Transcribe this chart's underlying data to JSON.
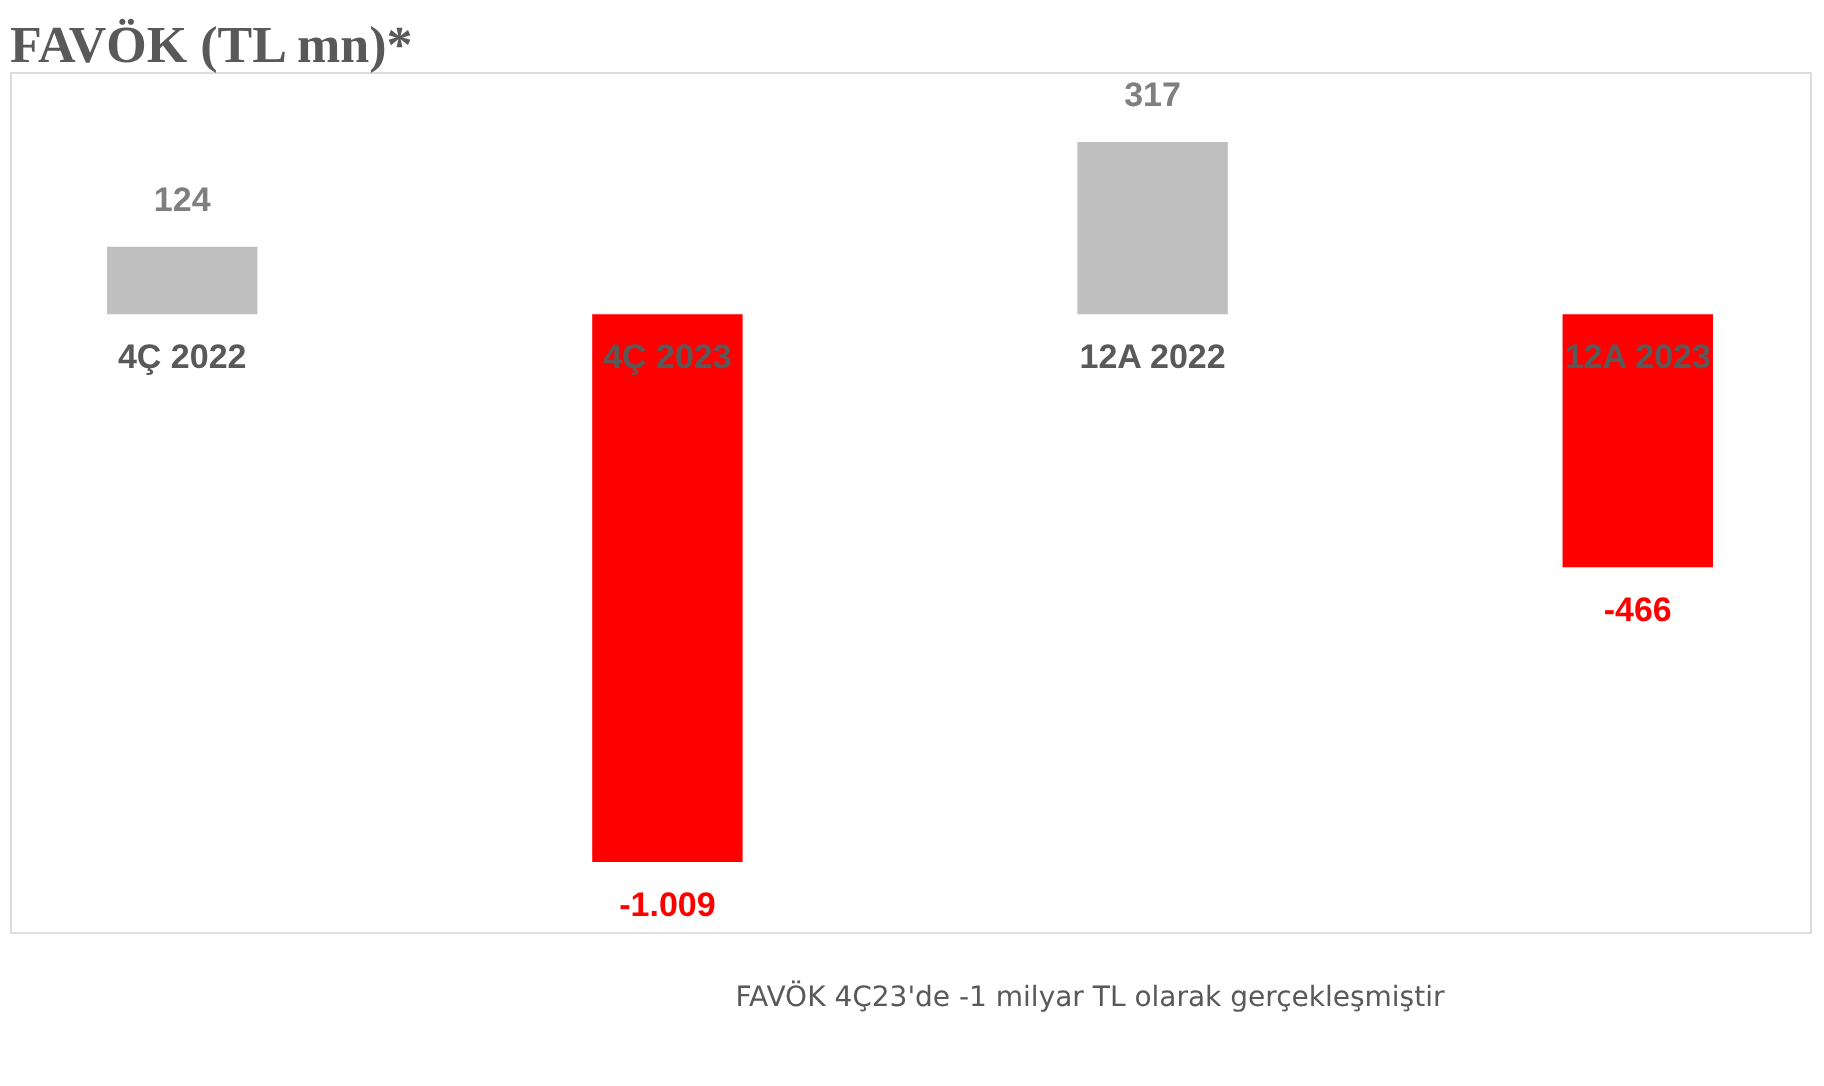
{
  "chart_data": {
    "type": "bar",
    "title": "FAVÖK (TL mn)*",
    "categories": [
      "4Ç 2022",
      "4Ç 2023",
      "12A 2022",
      "12A 2023"
    ],
    "values": [
      124,
      -1009,
      317,
      -466
    ],
    "colors": [
      "#bfbfbf",
      "#ff0000",
      "#bfbfbf",
      "#ff0000"
    ],
    "value_labels": [
      "124",
      "-1.009",
      "317",
      "-466"
    ],
    "annotations": [
      "FAVÖK 4Ç23'de -1 milyar TL olarak gerçekleşmiştir"
    ]
  }
}
